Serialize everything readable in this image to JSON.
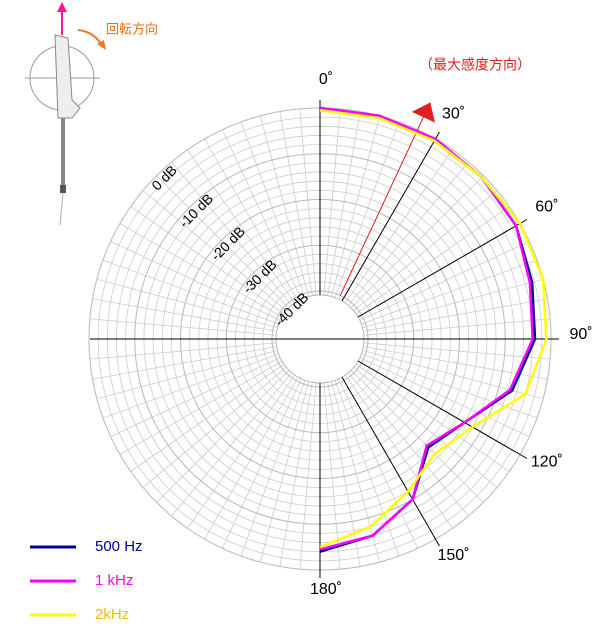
{
  "chart_data": {
    "type": "polar",
    "annotation": "（最大感度方向）",
    "rotation_label": "回転方向",
    "max_direction": 25,
    "theta": [
      0,
      15,
      30,
      45,
      60,
      75,
      90,
      105,
      120,
      135,
      150,
      165,
      180
    ],
    "rlim": [
      -40,
      0
    ],
    "rticks": [
      {
        "value": 0,
        "label": "0 dB"
      },
      {
        "value": -10,
        "label": "-10 dB"
      },
      {
        "value": -20,
        "label": "-20 dB"
      },
      {
        "value": -30,
        "label": "-30 dB"
      },
      {
        "value": -40,
        "label": "-40 dB"
      }
    ],
    "thetaticks": [
      {
        "value": 0,
        "label": "0˚"
      },
      {
        "value": 30,
        "label": "30˚"
      },
      {
        "value": 60,
        "label": "60˚"
      },
      {
        "value": 90,
        "label": "90˚"
      },
      {
        "value": 120,
        "label": "120˚"
      },
      {
        "value": 150,
        "label": "150˚"
      },
      {
        "value": 180,
        "label": "180˚"
      }
    ],
    "grid": true,
    "legend": "bottom-left",
    "series": [
      {
        "name": "500 Hz",
        "color": "#00008b",
        "values": [
          0,
          0,
          -0.5,
          -0.5,
          -1,
          -2.5,
          -3.5,
          -7,
          -14,
          -17,
          -10,
          -6,
          -4
        ]
      },
      {
        "name": "1 kHz",
        "color": "#ff00ff",
        "values": [
          0,
          0,
          0,
          -0.5,
          -1,
          -3,
          -4,
          -7.5,
          -14,
          -17.5,
          -10,
          -6,
          -4.5
        ]
      },
      {
        "name": "2kHz",
        "color": "#ffff00",
        "values": [
          -0.5,
          -0.5,
          -0.5,
          -0.5,
          0,
          0,
          -1,
          -4,
          -12,
          -15,
          -12,
          -8,
          -5
        ]
      }
    ]
  }
}
